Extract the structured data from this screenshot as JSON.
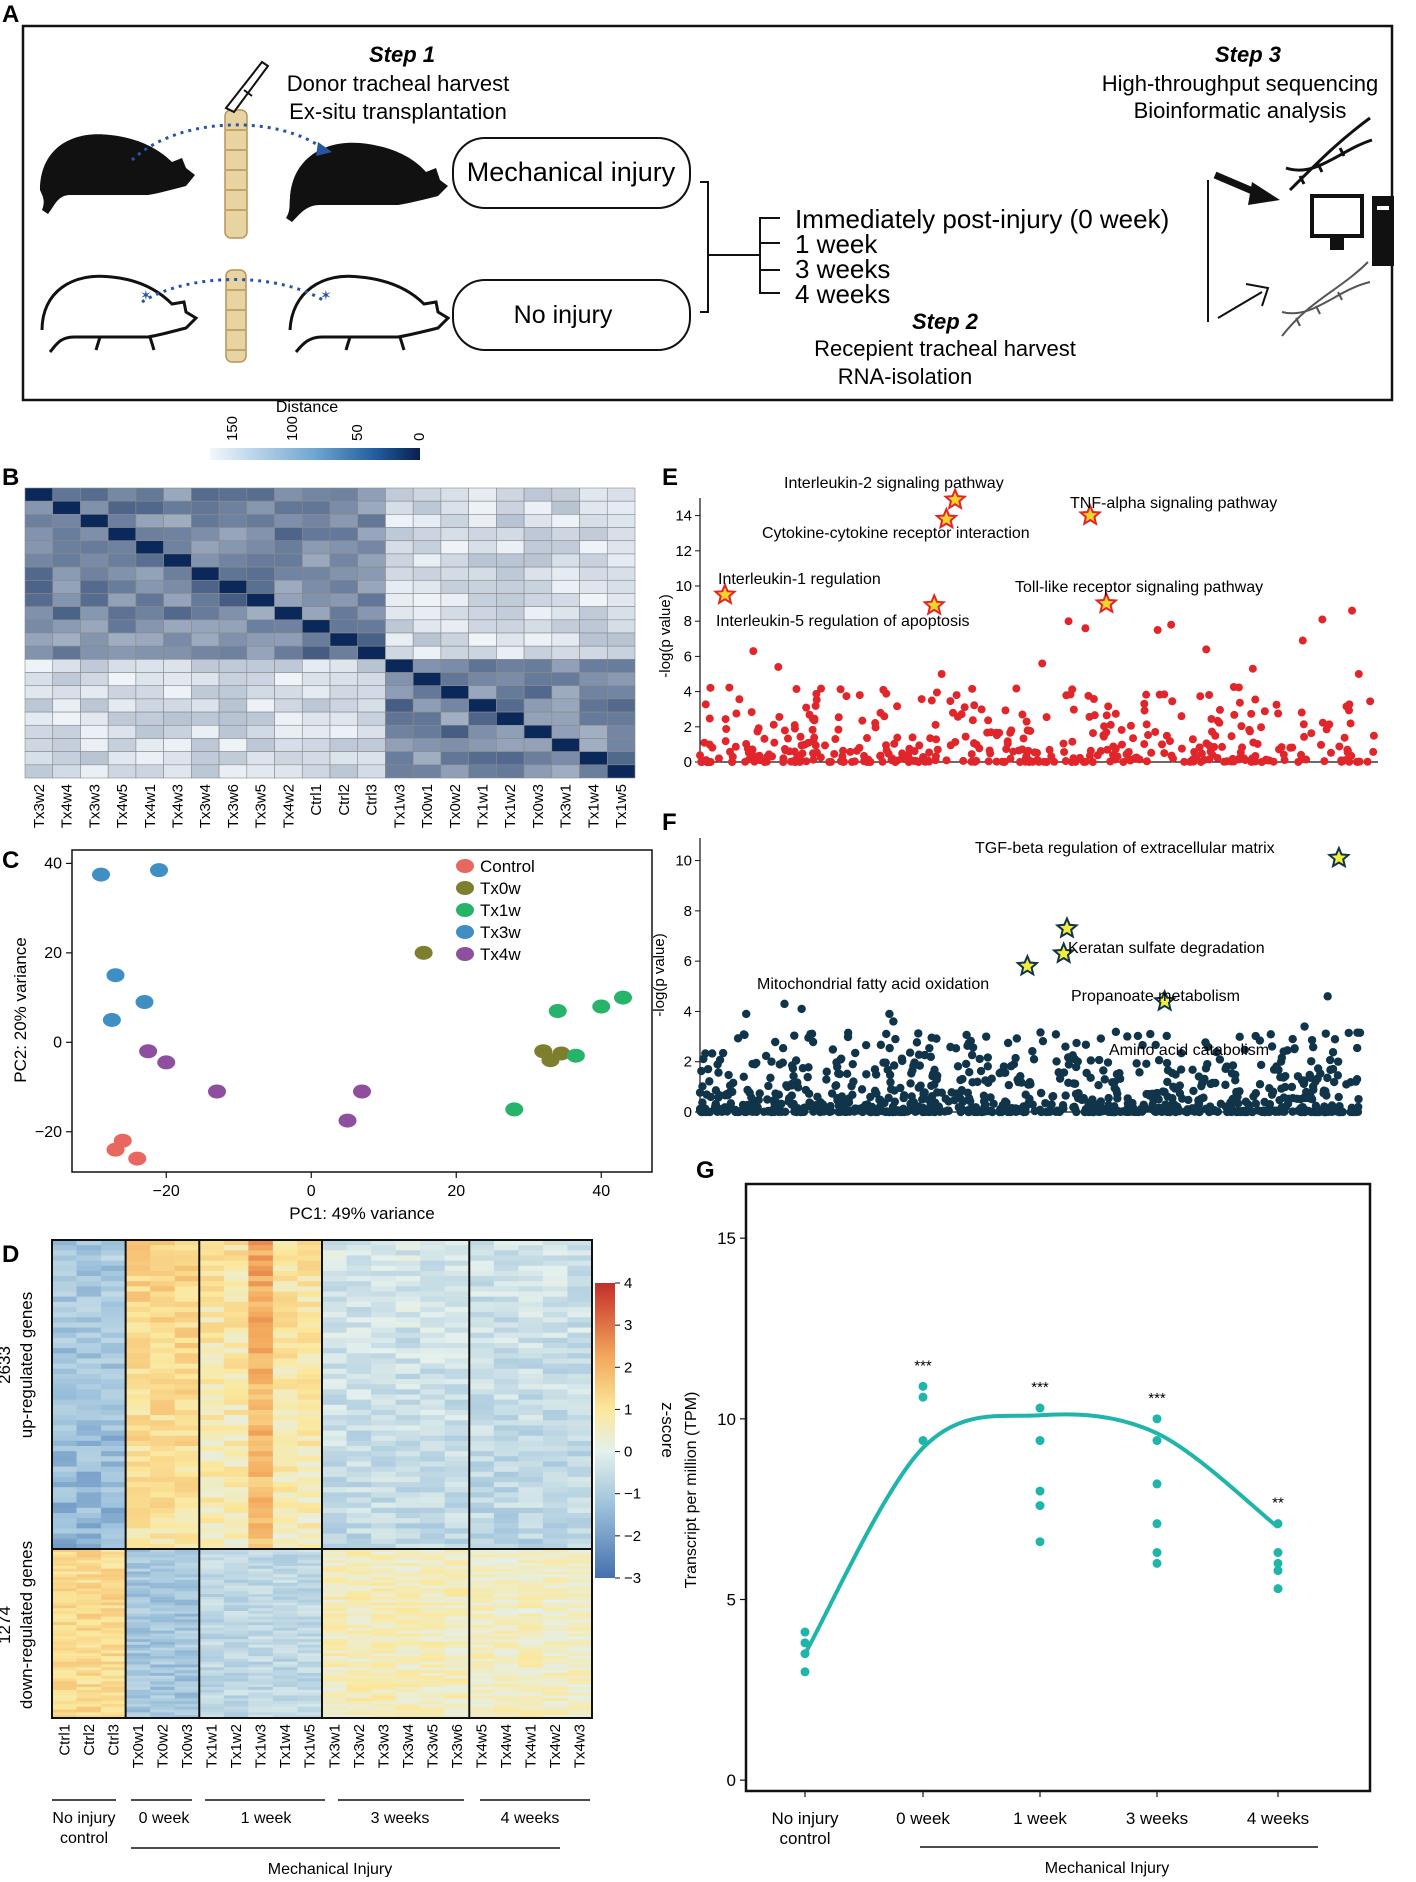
{
  "panel_letters": {
    "a": "A",
    "b": "B",
    "c": "C",
    "d": "D",
    "e": "E",
    "f": "F",
    "g": "G"
  },
  "panelA": {
    "step1_title": "Step 1",
    "step1_line1": "Donor tracheal harvest",
    "step1_line2": "Ex-situ transplantation",
    "step2_title": "Step 2",
    "step2_line1": "Recepient tracheal harvest",
    "step2_line2": "RNA-isolation",
    "step3_title": "Step 3",
    "step3_line1": "High-throughput sequencing",
    "step3_line2": "Bioinformatic analysis",
    "box_injury": "Mechanical injury",
    "box_noinjury": "No injury",
    "timepoints": [
      "Immediately post-injury (0 week)",
      "1 week",
      "3 weeks",
      "4 weeks"
    ]
  },
  "colors": {
    "control": "#e8675f",
    "tx0w": "#7d7f2e",
    "tx1w": "#27b36a",
    "tx3w": "#3f8fc4",
    "tx4w": "#8d4f9e",
    "e_points": "#e0262b",
    "f_points": "#10344a",
    "g_line": "#1fb5aa",
    "star_fill_e": "#f5d327",
    "star_stroke_e": "#e0262b",
    "star_fill_f": "#f2ee3a",
    "star_stroke_f": "#10344a"
  },
  "chart_data": [
    {
      "id": "B",
      "type": "heatmap",
      "title": "Distance",
      "colorbar_ticks": [
        "150",
        "100",
        "50",
        "0"
      ],
      "samples": [
        "Tx3w2",
        "Tx4w4",
        "Tx3w3",
        "Tx4w5",
        "Tx4w1",
        "Tx4w3",
        "Tx3w4",
        "Tx3w6",
        "Tx3w5",
        "Tx4w2",
        "Ctrl1",
        "Ctrl2",
        "Ctrl3",
        "Tx1w3",
        "Tx0w1",
        "Tx0w2",
        "Tx1w1",
        "Tx1w2",
        "Tx0w3",
        "Tx3w1",
        "Tx1w4",
        "Tx1w5"
      ]
    },
    {
      "id": "C",
      "type": "scatter",
      "xlabel": "PC1: 49% variance",
      "ylabel": "PC2: 20% variance",
      "xlim": [
        -33,
        47
      ],
      "ylim": [
        -29,
        43
      ],
      "xticks": [
        -20,
        0,
        20,
        40
      ],
      "yticks": [
        -20,
        0,
        20,
        40
      ],
      "legend_position": "top-right",
      "series": [
        {
          "name": "Control",
          "color_key": "control",
          "x": [
            -26,
            -27,
            -24
          ],
          "y": [
            -22,
            -24,
            -26
          ]
        },
        {
          "name": "Tx0w",
          "color_key": "tx0w",
          "x": [
            15.5,
            32,
            33,
            34.5
          ],
          "y": [
            20,
            -2,
            -4,
            -2.5
          ]
        },
        {
          "name": "Tx1w",
          "color_key": "tx1w",
          "x": [
            28,
            34,
            36.5,
            40,
            43
          ],
          "y": [
            -15,
            7,
            -3,
            8,
            10
          ]
        },
        {
          "name": "Tx3w",
          "color_key": "tx3w",
          "x": [
            -29,
            -21,
            -27,
            -27.5,
            -23
          ],
          "y": [
            37.5,
            38.5,
            15,
            5,
            9
          ]
        },
        {
          "name": "Tx4w",
          "color_key": "tx4w",
          "x": [
            -22.5,
            -20,
            -13,
            5,
            7
          ],
          "y": [
            -2,
            -4.5,
            -11,
            -17.5,
            -11
          ]
        }
      ]
    },
    {
      "id": "D",
      "type": "heatmap",
      "colorbar_label": "z-score",
      "colorbar_ticks": [
        "4",
        "3",
        "2",
        "1",
        "0",
        "−1",
        "−2",
        "−3"
      ],
      "row_groups": [
        {
          "count": "2633",
          "label": "up-regulated genes"
        },
        {
          "count": "1274",
          "label": "down-regulated genes"
        }
      ],
      "samples": [
        "Ctrl1",
        "Ctrl2",
        "Ctrl3",
        "Tx0w1",
        "Tx0w2",
        "Tx0w3",
        "Tx1w1",
        "Tx1w2",
        "Tx1w3",
        "Tx1w4",
        "Tx1w5",
        "Tx3w1",
        "Tx3w2",
        "Tx3w3",
        "Tx3w4",
        "Tx3w5",
        "Tx3w6",
        "Tx4w5",
        "Tx4w4",
        "Tx4w1",
        "Tx4w2",
        "Tx4w3"
      ],
      "group_labels": [
        "No injury",
        "control",
        "0 week",
        "1 week",
        "3 weeks",
        "4 weeks"
      ],
      "group_caption": "Mechanical Injury"
    },
    {
      "id": "E",
      "type": "scatter",
      "ylabel": "-log(p value)",
      "ylim": [
        0,
        15
      ],
      "yticks": [
        0,
        2,
        4,
        6,
        8,
        10,
        12,
        14
      ],
      "highlights": [
        {
          "label": "Interleukin-2 signaling pathway",
          "x": 0.378,
          "y": 14.9
        },
        {
          "label": "TNF-alpha signaling pathway",
          "x": 0.578,
          "y": 14.0
        },
        {
          "label": "Cytokine-cytokine receptor interaction",
          "x": 0.365,
          "y": 13.8
        },
        {
          "label": "Interleukin-1 regulation",
          "x": 0.037,
          "y": 9.5
        },
        {
          "label": "Toll-like receptor signaling pathway",
          "x": 0.602,
          "y": 9.0
        },
        {
          "label": "Interleukin-5 regulation of apoptosis",
          "x": 0.347,
          "y": 8.9
        }
      ],
      "outliers": [
        {
          "x": 0.079,
          "y": 6.3
        },
        {
          "x": 0.116,
          "y": 5.4
        },
        {
          "x": 0.358,
          "y": 5.0
        },
        {
          "x": 0.507,
          "y": 5.6
        },
        {
          "x": 0.546,
          "y": 8.0
        },
        {
          "x": 0.571,
          "y": 7.6
        },
        {
          "x": 0.678,
          "y": 7.5
        },
        {
          "x": 0.698,
          "y": 7.8
        },
        {
          "x": 0.75,
          "y": 6.4
        },
        {
          "x": 0.819,
          "y": 5.3
        },
        {
          "x": 0.893,
          "y": 6.9
        },
        {
          "x": 0.922,
          "y": 8.1
        },
        {
          "x": 0.966,
          "y": 8.6
        },
        {
          "x": 0.976,
          "y": 5.0
        }
      ]
    },
    {
      "id": "F",
      "type": "scatter",
      "ylabel": "-log(p value)",
      "ylim": [
        0,
        10.5
      ],
      "yticks": [
        0,
        2,
        4,
        6,
        8,
        10
      ],
      "highlights": [
        {
          "label": "TGF-beta regulation of extracellular matrix",
          "x": 0.968,
          "y": 10.1
        },
        {
          "label": "Keratan sulfate degradation",
          "x": 0.556,
          "y": 7.3
        },
        {
          "label": "Propanoate metabolism",
          "x": 0.551,
          "y": 6.3
        },
        {
          "label": "Mitochondrial fatty acid oxidation",
          "x": 0.496,
          "y": 5.8
        },
        {
          "label": "Amino acid catabolism",
          "x": 0.704,
          "y": 4.4
        }
      ],
      "outliers": [
        {
          "x": 0.07,
          "y": 3.9
        },
        {
          "x": 0.128,
          "y": 4.3
        },
        {
          "x": 0.154,
          "y": 4.1
        },
        {
          "x": 0.287,
          "y": 3.9
        },
        {
          "x": 0.293,
          "y": 3.6
        },
        {
          "x": 0.951,
          "y": 4.6
        },
        {
          "x": 0.916,
          "y": 3.4
        },
        {
          "x": 0.898,
          "y": 2.9
        }
      ]
    },
    {
      "id": "G",
      "type": "line",
      "ylabel": "Transcript per million (TPM)",
      "ylim": [
        -0.3,
        16.5
      ],
      "yticks": [
        0,
        5,
        10,
        15
      ],
      "categories": [
        "No injury\ncontrol",
        "0 week",
        "1 week",
        "3 weeks",
        "4 weeks"
      ],
      "x_caption": "Mechanical Injury",
      "points": [
        [
          3.0,
          3.5,
          3.8,
          4.1
        ],
        [
          9.4,
          10.6,
          10.9
        ],
        [
          6.6,
          7.6,
          8.0,
          9.4,
          10.3
        ],
        [
          6.0,
          6.3,
          7.1,
          8.2,
          9.4,
          10.0
        ],
        [
          5.3,
          5.8,
          6.0,
          6.3,
          7.1
        ]
      ],
      "trend": [
        3.5,
        9.2,
        10.1,
        9.6,
        7.0
      ],
      "significance": [
        "",
        "***",
        "***",
        "***",
        "**"
      ]
    }
  ]
}
